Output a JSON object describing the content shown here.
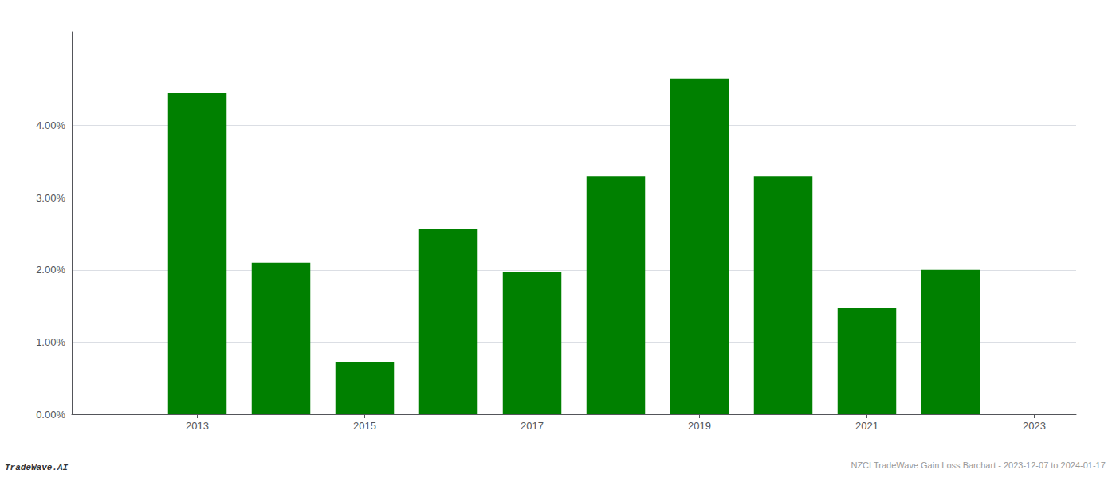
{
  "chart_data": {
    "type": "bar",
    "title": "NZCI TradeWave Gain Loss Barchart - 2023-12-07 to 2024-01-17",
    "x": [
      2013,
      2014,
      2015,
      2016,
      2017,
      2018,
      2019,
      2020,
      2021,
      2022
    ],
    "values": [
      0.0445,
      0.021,
      0.0073,
      0.0257,
      0.0197,
      0.033,
      0.0465,
      0.033,
      0.0148,
      0.02
    ],
    "color": "#008000",
    "xlim": [
      2011.5,
      2023.5
    ],
    "xticks": [
      2013,
      2015,
      2017,
      2019,
      2021,
      2023
    ],
    "ylim": [
      0,
      0.053
    ],
    "yticks": [
      {
        "value": 0.0,
        "label": "0.00%"
      },
      {
        "value": 0.01,
        "label": "1.00%"
      },
      {
        "value": 0.02,
        "label": "2.00%"
      },
      {
        "value": 0.03,
        "label": "3.00%"
      },
      {
        "value": 0.04,
        "label": "4.00%"
      }
    ],
    "grid": true,
    "annotations": [
      "TradeWave.AI"
    ]
  }
}
